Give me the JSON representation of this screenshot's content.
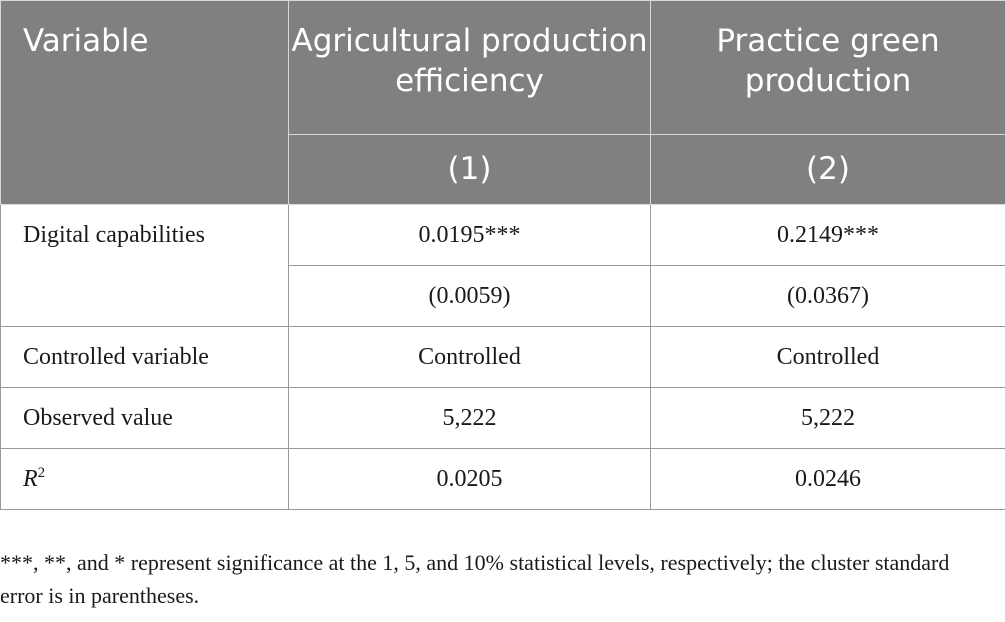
{
  "header": {
    "variable": "Variable",
    "col1_title": "Agricultural production efficiency",
    "col2_title": "Practice green production",
    "col1_number": "(1)",
    "col2_number": "(2)"
  },
  "rows": [
    {
      "label": "Digital capabilities",
      "col1": "0.0195***",
      "col2": "0.2149***",
      "col1_se": "(0.0059)",
      "col2_se": "(0.0367)"
    },
    {
      "label": "Controlled variable",
      "col1": "Controlled",
      "col2": "Controlled"
    },
    {
      "label": "Observed value",
      "col1": "5,222",
      "col2": "5,222"
    },
    {
      "label_base": "R",
      "label_sup": "2",
      "col1": "0.0205",
      "col2": "0.0246"
    }
  ],
  "footnote": "***, **, and * represent significance at the 1, 5, and 10% statistical levels, respectively; the cluster standard error is in parentheses."
}
